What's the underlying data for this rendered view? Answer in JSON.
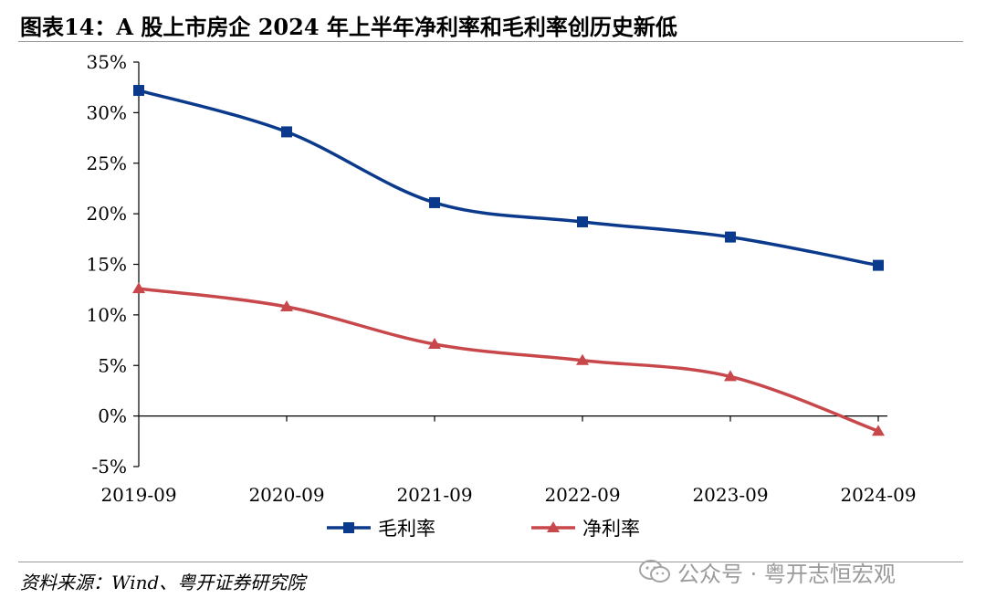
{
  "title": "图表14：A 股上市房企 2024 年上半年净利率和毛利率创历史新低",
  "source": "资料来源：Wind、粤开证券研究院",
  "watermark": {
    "text": "公众号 · 粤开志恒宏观",
    "icon": "wechat-icon"
  },
  "colors": {
    "gross_margin": "#0b3a8c",
    "net_margin": "#c8474b"
  },
  "chart_data": {
    "type": "line",
    "title": "图表14：A 股上市房企 2024 年上半年净利率和毛利率创历史新低",
    "xlabel": "",
    "ylabel": "",
    "categories": [
      "2019-09",
      "2020-09",
      "2021-09",
      "2022-09",
      "2023-09",
      "2024-09"
    ],
    "ylim": [
      -5,
      35
    ],
    "yticks": [
      -5,
      0,
      5,
      10,
      15,
      20,
      25,
      30,
      35
    ],
    "ytick_labels": [
      "-5%",
      "0%",
      "5%",
      "10%",
      "15%",
      "20%",
      "25%",
      "30%",
      "35%"
    ],
    "grid": false,
    "legend_position": "bottom",
    "series": [
      {
        "name": "毛利率",
        "marker": "square",
        "color": "#0b3a8c",
        "values": [
          32.2,
          28.1,
          21.1,
          19.2,
          17.7,
          14.9
        ]
      },
      {
        "name": "净利率",
        "marker": "triangle",
        "color": "#c8474b",
        "values": [
          12.6,
          10.8,
          7.1,
          5.5,
          3.9,
          -1.5
        ]
      }
    ]
  }
}
